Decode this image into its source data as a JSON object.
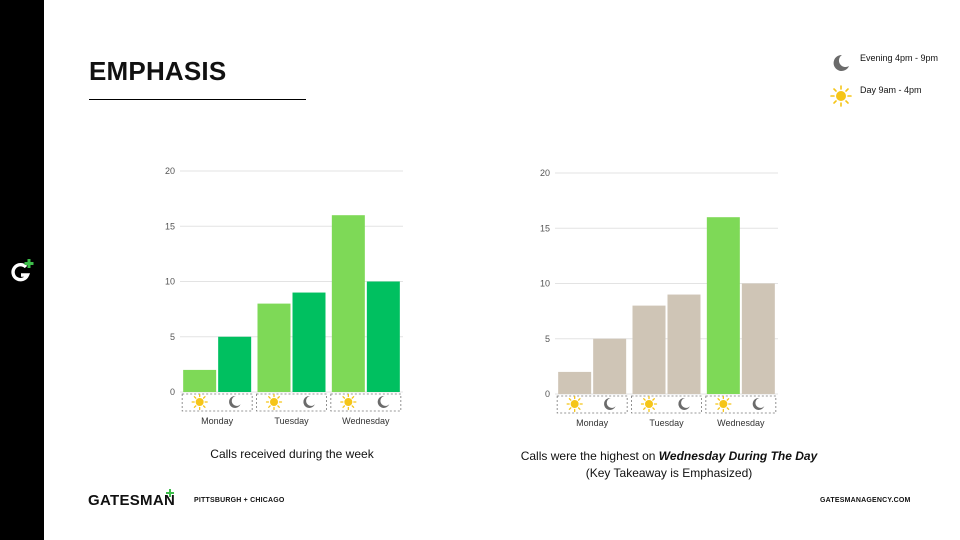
{
  "slide": {
    "title": "EMPHASIS",
    "footer_brand": "GATESMAN",
    "footer_location": "PITTSBURGH + CHICAGO",
    "footer_url": "GATESMANAGENCY.COM"
  },
  "legend": [
    {
      "icon": "moon-icon",
      "label": "Evening 4pm - 9pm"
    },
    {
      "icon": "sun-icon",
      "label": "Day 9am - 4pm"
    }
  ],
  "colors": {
    "day_green": "#7ed957",
    "evening_green": "#00c060",
    "muted": "#cfc5b6",
    "grid": "#e3e3e3",
    "brand_green": "#3dbd4a"
  },
  "chart_data": [
    {
      "type": "bar",
      "categories": [
        "Monday",
        "Tuesday",
        "Wednesday"
      ],
      "series": [
        {
          "name": "Day",
          "values": [
            2,
            8,
            16
          ]
        },
        {
          "name": "Evening",
          "values": [
            5,
            9,
            10
          ]
        }
      ],
      "ylim": [
        0,
        20
      ],
      "yticks": [
        0,
        5,
        10,
        15,
        20
      ],
      "grid": true,
      "caption": "Calls received during the week"
    },
    {
      "type": "bar",
      "categories": [
        "Monday",
        "Tuesday",
        "Wednesday"
      ],
      "series": [
        {
          "name": "Day",
          "values": [
            2,
            8,
            16
          ]
        },
        {
          "name": "Evening",
          "values": [
            5,
            9,
            10
          ]
        }
      ],
      "ylim": [
        0,
        20
      ],
      "yticks": [
        0,
        5,
        10,
        15,
        20
      ],
      "grid": true,
      "highlight": {
        "category": "Wednesday",
        "series": "Day"
      },
      "caption_prefix": "Calls were the highest on ",
      "caption_emphasis": "Wednesday During The Day",
      "caption_line2": "(Key Takeaway is Emphasized)"
    }
  ]
}
